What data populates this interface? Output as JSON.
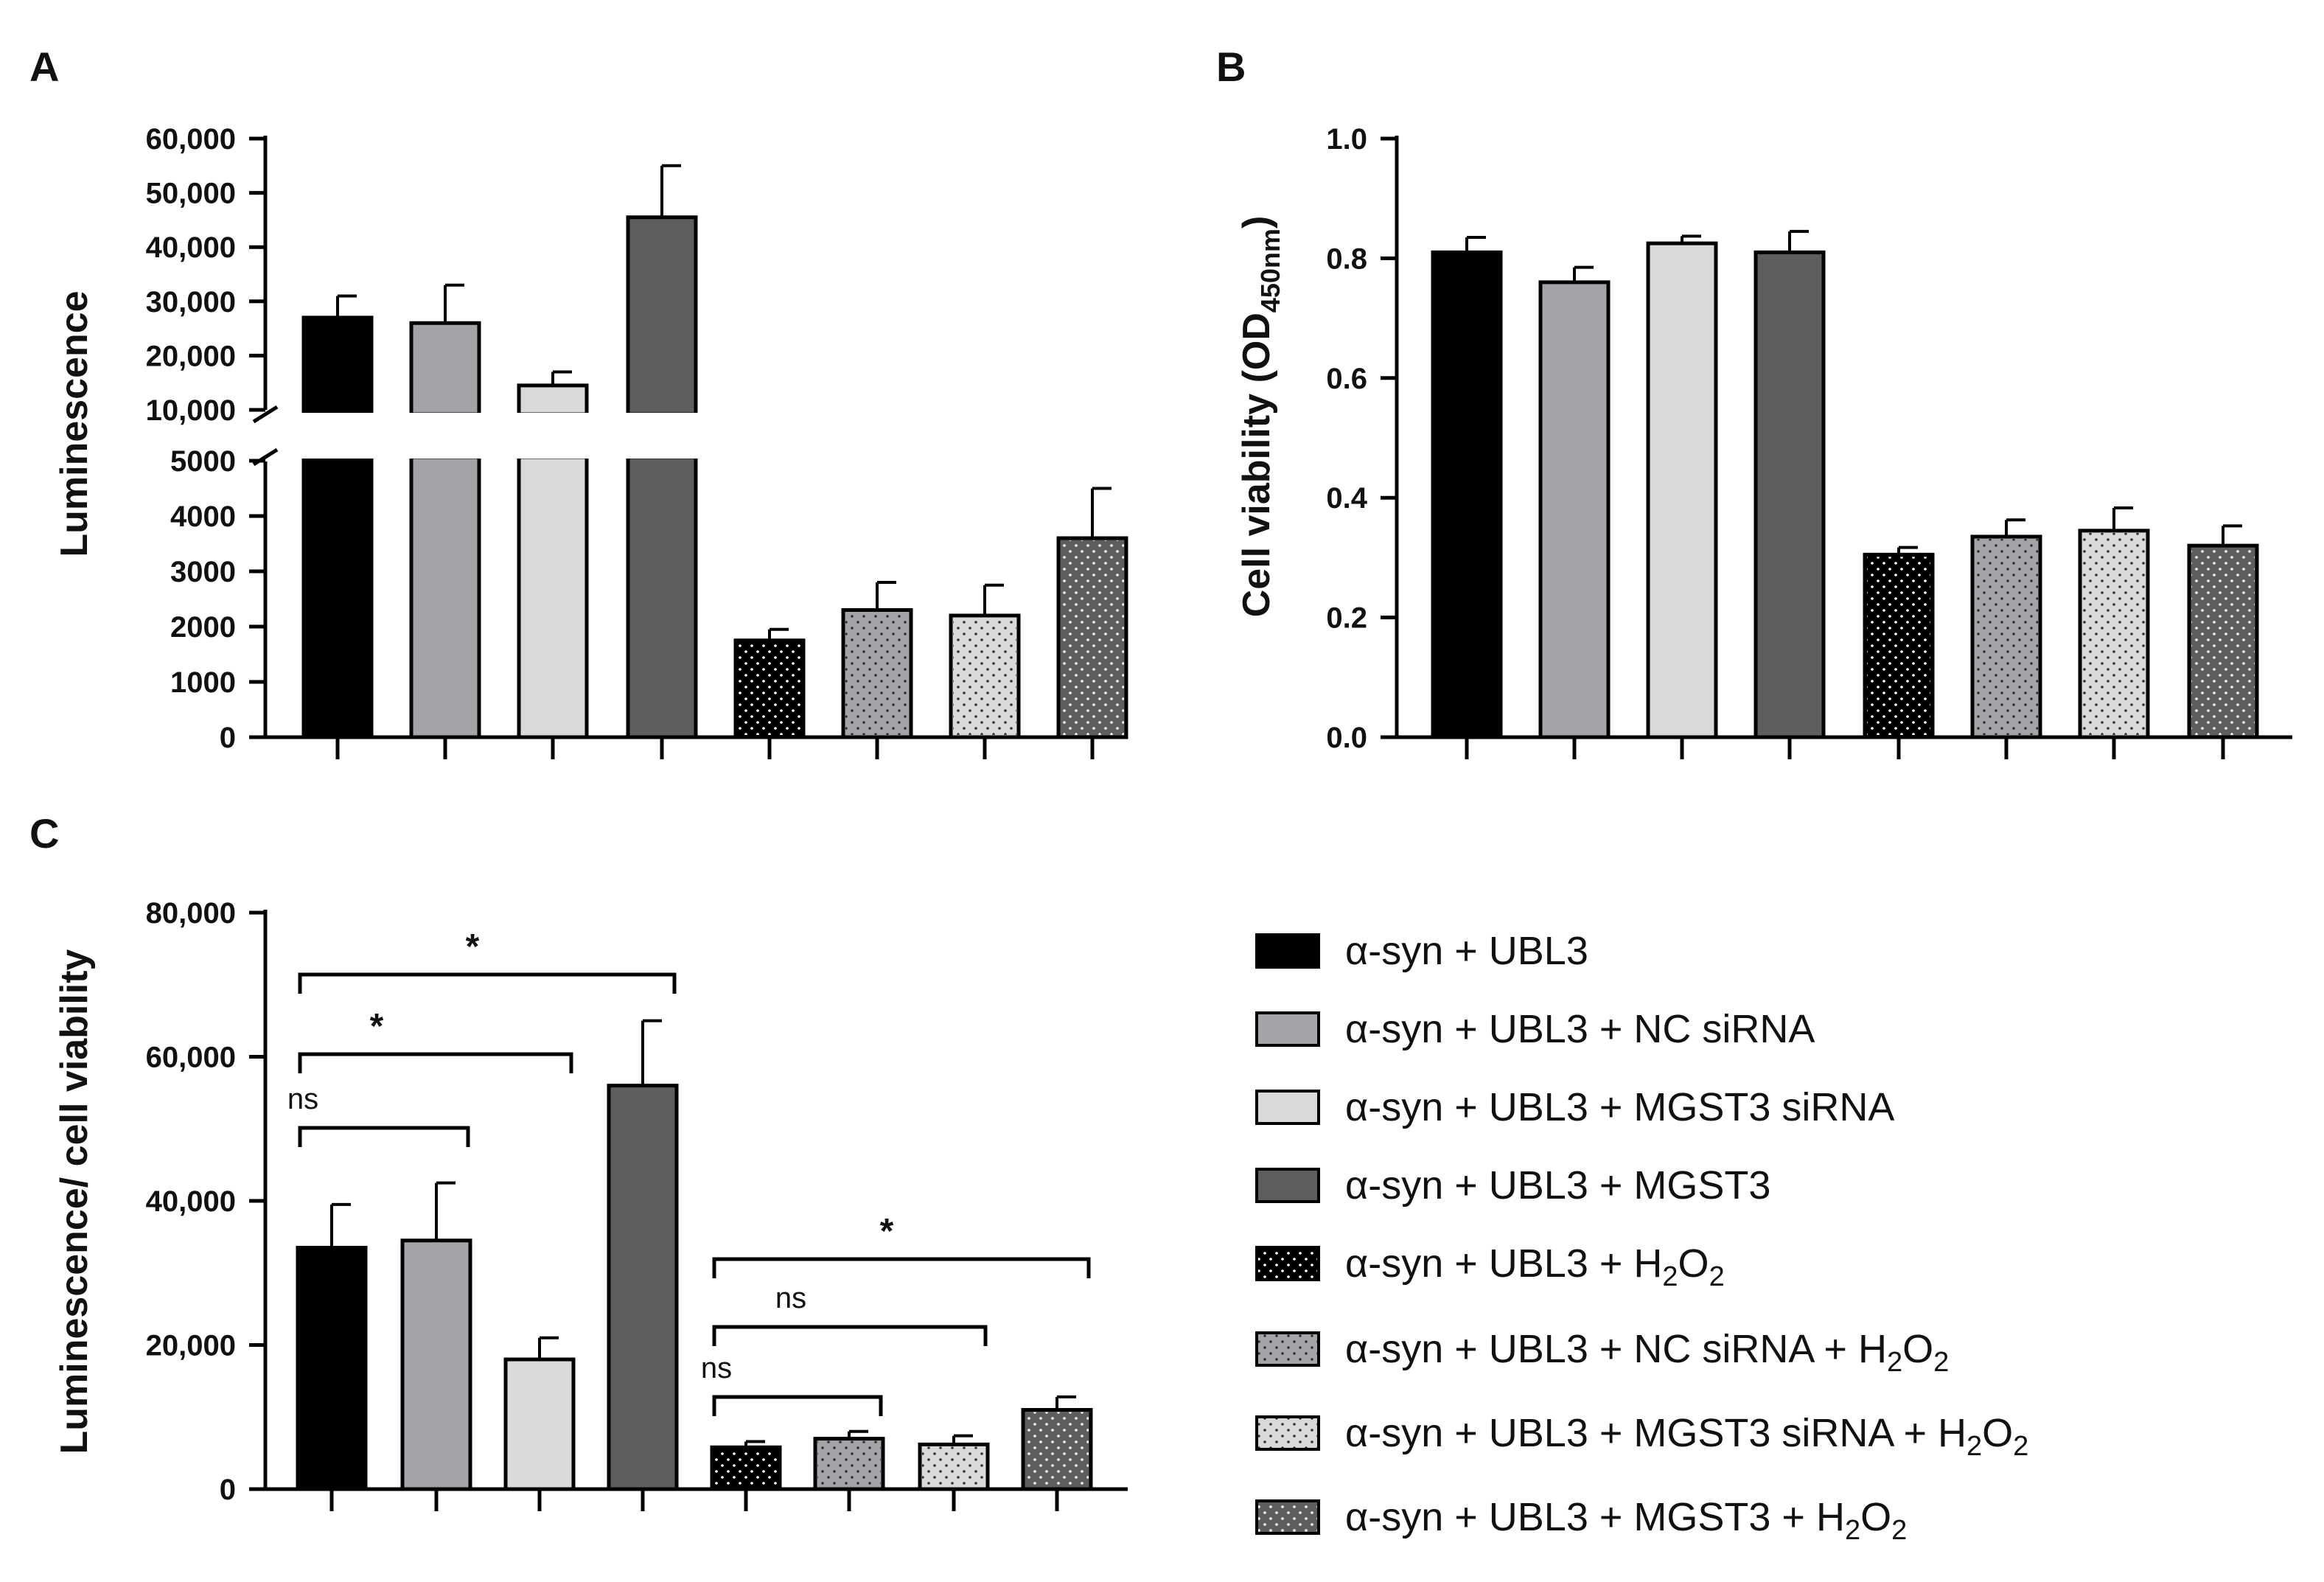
{
  "legend": [
    {
      "label": "α-syn + UBL3",
      "suffix": "",
      "fill": "#000000",
      "pattern": "none"
    },
    {
      "label": "α-syn + UBL3 + NC siRNA",
      "suffix": "",
      "fill": "#a3a3a8",
      "pattern": "none"
    },
    {
      "label": "α-syn + UBL3 + MGST3 siRNA",
      "suffix": "",
      "fill": "#d9d9d9",
      "pattern": "none"
    },
    {
      "label": "α-syn + UBL3 + MGST3",
      "suffix": "",
      "fill": "#5e5e5e",
      "pattern": "none"
    },
    {
      "label": "α-syn + UBL3 + H",
      "suffix": "2O2",
      "fill": "#000000",
      "pattern": "dots-light"
    },
    {
      "label": "α-syn + UBL3 + NC siRNA + H",
      "suffix": "2O2",
      "fill": "#a3a3a8",
      "pattern": "dots-dark"
    },
    {
      "label": "α-syn + UBL3 + MGST3 siRNA + H",
      "suffix": "2O2",
      "fill": "#d9d9d9",
      "pattern": "dots-dark"
    },
    {
      "label": "α-syn + UBL3 + MGST3 + H",
      "suffix": "2O2",
      "fill": "#5e5e5e",
      "pattern": "dots-light"
    }
  ],
  "chart_data": [
    {
      "panel": "A",
      "type": "bar",
      "ylabel": "Luminescence",
      "axis_break": true,
      "lower_ylim": [
        0,
        5000
      ],
      "lower_ticks": [
        "0",
        "1000",
        "2000",
        "3000",
        "4000",
        "5000"
      ],
      "upper_ylim": [
        10000,
        60000
      ],
      "upper_ticks": [
        "10,000",
        "20,000",
        "30,000",
        "40,000",
        "50,000",
        "60,000"
      ],
      "values": [
        27000,
        26000,
        14500,
        45500,
        1750,
        2300,
        2200,
        3600
      ],
      "errors": [
        4000,
        7000,
        2500,
        9500,
        200,
        500,
        550,
        900
      ]
    },
    {
      "panel": "B",
      "type": "bar",
      "ylabel": "Cell viability (OD",
      "ylabel_sub": "450nm",
      "ylabel_end": ")",
      "ylim": [
        0,
        1.0
      ],
      "ticks": [
        "0.0",
        "0.2",
        "0.4",
        "0.6",
        "0.8",
        "1.0"
      ],
      "values": [
        0.81,
        0.76,
        0.825,
        0.81,
        0.305,
        0.335,
        0.345,
        0.32
      ],
      "errors": [
        0.025,
        0.025,
        0.012,
        0.035,
        0.012,
        0.028,
        0.038,
        0.033
      ]
    },
    {
      "panel": "C",
      "type": "bar",
      "ylabel": "Luminescence/ cell viability",
      "ylim": [
        0,
        80000
      ],
      "ticks": [
        "0",
        "20,000",
        "40,000",
        "60,000",
        "80,000"
      ],
      "values": [
        33500,
        34500,
        18000,
        56000,
        5800,
        7000,
        6200,
        11000
      ],
      "errors": [
        6000,
        8000,
        3000,
        9000,
        800,
        1000,
        1200,
        1800
      ],
      "significance": [
        {
          "from": 1,
          "to": 4,
          "label": "*",
          "level": 3
        },
        {
          "from": 1,
          "to": 3,
          "label": "*",
          "level": 2
        },
        {
          "from": 1,
          "to": 2,
          "label": "ns",
          "level": 1
        },
        {
          "from": 5,
          "to": 8,
          "label": "*",
          "level": 3
        },
        {
          "from": 5,
          "to": 7,
          "label": "ns",
          "level": 2
        },
        {
          "from": 5,
          "to": 6,
          "label": "ns",
          "level": 1
        }
      ]
    }
  ]
}
